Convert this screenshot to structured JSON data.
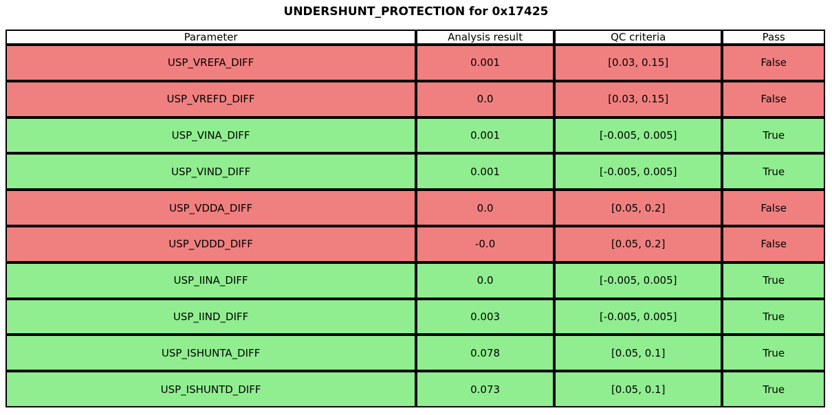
{
  "chart_data": {
    "type": "table",
    "title": "UNDERSHUNT_PROTECTION for 0x17425",
    "columns": [
      "Parameter",
      "Analysis result",
      "QC criteria",
      "Pass"
    ],
    "rows": [
      {
        "parameter": "USP_VREFA_DIFF",
        "analysis_result": "0.001",
        "qc_criteria": "[0.03, 0.15]",
        "pass": "False"
      },
      {
        "parameter": "USP_VREFD_DIFF",
        "analysis_result": "0.0",
        "qc_criteria": "[0.03, 0.15]",
        "pass": "False"
      },
      {
        "parameter": "USP_VINA_DIFF",
        "analysis_result": "0.001",
        "qc_criteria": "[-0.005, 0.005]",
        "pass": "True"
      },
      {
        "parameter": "USP_VIND_DIFF",
        "analysis_result": "0.001",
        "qc_criteria": "[-0.005, 0.005]",
        "pass": "True"
      },
      {
        "parameter": "USP_VDDA_DIFF",
        "analysis_result": "0.0",
        "qc_criteria": "[0.05, 0.2]",
        "pass": "False"
      },
      {
        "parameter": "USP_VDDD_DIFF",
        "analysis_result": "-0.0",
        "qc_criteria": "[0.05, 0.2]",
        "pass": "False"
      },
      {
        "parameter": "USP_IINA_DIFF",
        "analysis_result": "0.0",
        "qc_criteria": "[-0.005, 0.005]",
        "pass": "True"
      },
      {
        "parameter": "USP_IIND_DIFF",
        "analysis_result": "0.003",
        "qc_criteria": "[-0.005, 0.005]",
        "pass": "True"
      },
      {
        "parameter": "USP_ISHUNTA_DIFF",
        "analysis_result": "0.078",
        "qc_criteria": "[0.05, 0.1]",
        "pass": "True"
      },
      {
        "parameter": "USP_ISHUNTD_DIFF",
        "analysis_result": "0.073",
        "qc_criteria": "[0.05, 0.1]",
        "pass": "True"
      }
    ],
    "layout": {
      "grid": true,
      "border_color": "#000000",
      "header_bg": "#ffffff"
    },
    "row_colors": {
      "True": "#90ee90",
      "False": "#f08080"
    }
  }
}
